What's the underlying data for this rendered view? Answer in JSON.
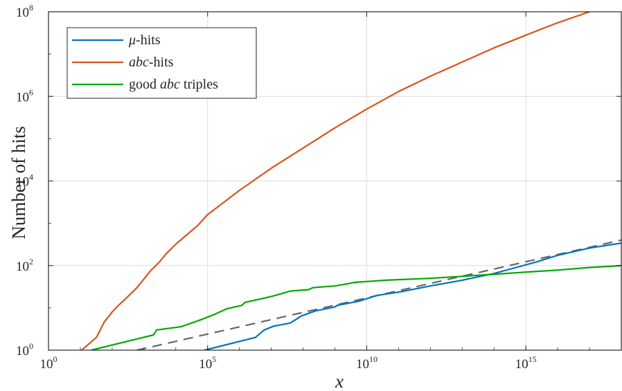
{
  "chart_data": {
    "type": "line",
    "xlabel": "x",
    "ylabel": "Number of hits",
    "xscale": "log",
    "yscale": "log",
    "xlim": [
      1,
      1e+18
    ],
    "ylim": [
      1,
      100000000.0
    ],
    "x_ticks": [
      {
        "base": "10",
        "exp": "0"
      },
      {
        "base": "10",
        "exp": "5"
      },
      {
        "base": "10",
        "exp": "10"
      },
      {
        "base": "10",
        "exp": "15"
      }
    ],
    "y_ticks": [
      {
        "base": "10",
        "exp": "0"
      },
      {
        "base": "10",
        "exp": "2"
      },
      {
        "base": "10",
        "exp": "4"
      },
      {
        "base": "10",
        "exp": "6"
      },
      {
        "base": "10",
        "exp": "8"
      }
    ],
    "grid": true,
    "legend_position": "top-left",
    "series": [
      {
        "name_math": "μ",
        "name_suffix": "-hits",
        "color": "#0072BD",
        "style": "solid",
        "x": [
          80000.0,
          3200000.0,
          6000000.0,
          12000000.0,
          40000000.0,
          90000000.0,
          250000000.0,
          1000000000.0,
          1200000000.0,
          6000000000.0,
          20000000000.0,
          120000000000.0,
          1000000000000.0,
          10000000000000.0,
          100000000000000.0,
          500000000000000.0,
          2000000000000000.0,
          1e+16,
          1e+17,
          1e+18
        ],
        "y": [
          1.0,
          2.0,
          3.0,
          3.7,
          4.4,
          6.5,
          8.5,
          10.5,
          11.5,
          14.5,
          19.5,
          24,
          33,
          45,
          65,
          90,
          120,
          175,
          260,
          340
        ]
      },
      {
        "name_math": "abc",
        "name_suffix": "-hits",
        "color": "#D95319",
        "style": "solid",
        "x": [
          11.0,
          32.0,
          55.0,
          100.0,
          150.0,
          300.0,
          600.0,
          1000.0,
          1600.0,
          3000.0,
          5000.0,
          10000.0,
          20000.0,
          50000.0,
          100000.0,
          1000000.0,
          10000000.0,
          100000000.0,
          1000000000.0,
          10000000000.0,
          100000000000.0,
          1000000000000.0,
          10000000000000.0,
          100000000000000.0,
          1000000000000000.0,
          1e+16,
          1e+17,
          1e+18
        ],
        "y": [
          1.0,
          2.0,
          4.5,
          8,
          11,
          18,
          30,
          48,
          75,
          120,
          190,
          320,
          500,
          900,
          1600,
          6000,
          20000,
          60000,
          180000,
          500000,
          1300000.0,
          3000000.0,
          6500000.0,
          14000000.0,
          28000000.0,
          55000000.0,
          100000000.0,
          180000000.0
        ]
      },
      {
        "name_math": "",
        "name_pre": "good ",
        "name_math2": "abc",
        "name_suffix": " triples",
        "color": "#00A800",
        "style": "solid",
        "x": [
          22.0,
          2000.0,
          2500.0,
          15000.0,
          60000.0,
          150000.0,
          400000.0,
          1200000.0,
          1500000.0,
          10000000.0,
          25000000.0,
          40000000.0,
          150000000.0,
          200000000.0,
          1000000000.0,
          2500000000.0,
          4000000000.0,
          10000000000.0,
          40000000000.0,
          1000000000000.0,
          100000000000000.0,
          1000000000000000.0,
          1e+16,
          1e+17,
          1e+18
        ],
        "y": [
          1.0,
          2.3,
          3.0,
          3.6,
          5.2,
          6.8,
          9.5,
          11.5,
          13.5,
          18.5,
          22.5,
          25,
          27,
          30,
          33,
          37,
          40,
          42,
          45,
          50,
          62,
          70,
          78,
          90,
          100
        ]
      },
      {
        "name_math": "",
        "name_suffix": "",
        "color": "#666666",
        "style": "dashed",
        "x": [
          600.0,
          1e+18
        ],
        "y": [
          1.0,
          400
        ]
      }
    ]
  }
}
